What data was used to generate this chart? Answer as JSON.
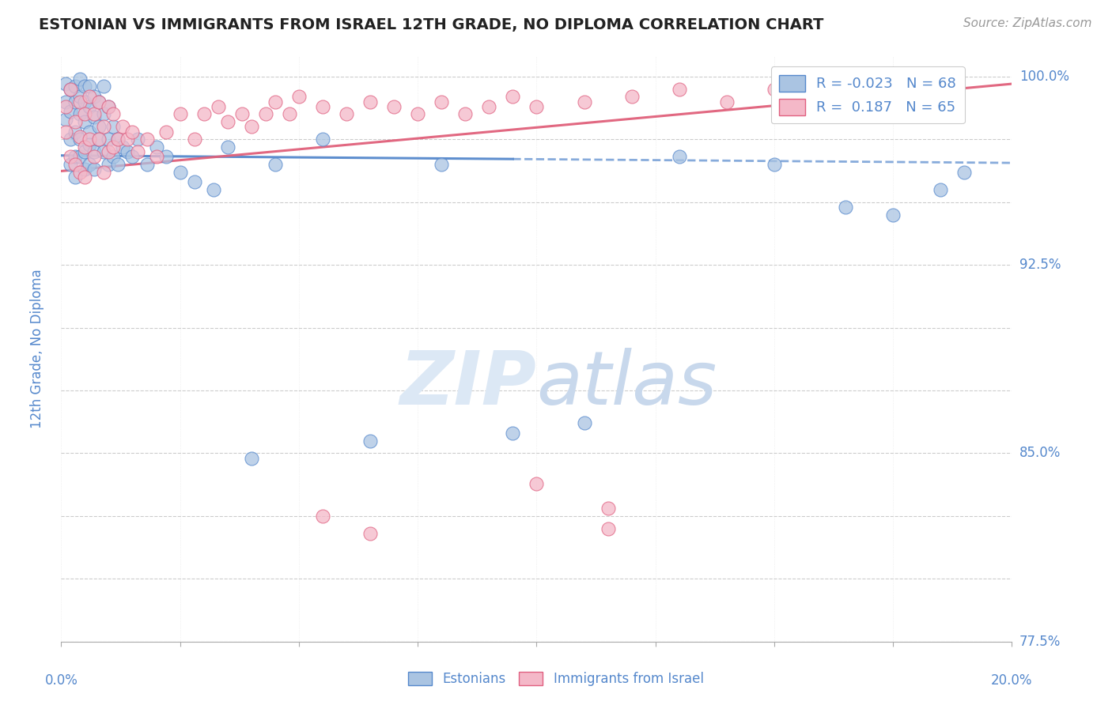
{
  "title": "ESTONIAN VS IMMIGRANTS FROM ISRAEL 12TH GRADE, NO DIPLOMA CORRELATION CHART",
  "source": "Source: ZipAtlas.com",
  "legend_label1": "Estonians",
  "legend_label2": "Immigrants from Israel",
  "ylabel_label": "12th Grade, No Diploma",
  "R1": -0.023,
  "N1": 68,
  "R2": 0.187,
  "N2": 65,
  "color_blue_fill": "#aac4e2",
  "color_blue_edge": "#5588cc",
  "color_pink_fill": "#f4b8c8",
  "color_pink_edge": "#e06080",
  "color_blue_line": "#5588cc",
  "color_pink_line": "#e0607a",
  "color_axis_label": "#5588cc",
  "color_grid": "#cccccc",
  "xlim": [
    0.0,
    0.2
  ],
  "ylim": [
    0.775,
    1.008
  ],
  "blue_scatter_x": [
    0.001,
    0.001,
    0.001,
    0.002,
    0.002,
    0.002,
    0.002,
    0.003,
    0.003,
    0.003,
    0.003,
    0.003,
    0.004,
    0.004,
    0.004,
    0.004,
    0.004,
    0.005,
    0.005,
    0.005,
    0.005,
    0.005,
    0.006,
    0.006,
    0.006,
    0.006,
    0.006,
    0.007,
    0.007,
    0.007,
    0.007,
    0.008,
    0.008,
    0.008,
    0.009,
    0.009,
    0.009,
    0.01,
    0.01,
    0.01,
    0.011,
    0.011,
    0.012,
    0.012,
    0.013,
    0.014,
    0.015,
    0.016,
    0.018,
    0.02,
    0.022,
    0.025,
    0.028,
    0.032,
    0.035,
    0.04,
    0.045,
    0.055,
    0.065,
    0.08,
    0.095,
    0.11,
    0.13,
    0.15,
    0.165,
    0.175,
    0.185,
    0.19
  ],
  "blue_scatter_y": [
    0.99,
    0.997,
    0.983,
    0.986,
    0.975,
    0.995,
    0.965,
    0.99,
    0.978,
    0.968,
    0.996,
    0.96,
    0.985,
    0.975,
    0.992,
    0.968,
    0.999,
    0.982,
    0.97,
    0.99,
    0.996,
    0.963,
    0.978,
    0.988,
    0.965,
    0.996,
    0.973,
    0.984,
    0.97,
    0.992,
    0.963,
    0.98,
    0.975,
    0.99,
    0.985,
    0.97,
    0.996,
    0.975,
    0.988,
    0.965,
    0.98,
    0.968,
    0.975,
    0.965,
    0.972,
    0.97,
    0.968,
    0.975,
    0.965,
    0.972,
    0.968,
    0.962,
    0.958,
    0.955,
    0.972,
    0.848,
    0.965,
    0.975,
    0.855,
    0.965,
    0.858,
    0.862,
    0.968,
    0.965,
    0.948,
    0.945,
    0.955,
    0.962
  ],
  "pink_scatter_x": [
    0.001,
    0.001,
    0.002,
    0.002,
    0.003,
    0.003,
    0.004,
    0.004,
    0.004,
    0.005,
    0.005,
    0.005,
    0.006,
    0.006,
    0.007,
    0.007,
    0.008,
    0.008,
    0.009,
    0.009,
    0.01,
    0.01,
    0.011,
    0.011,
    0.012,
    0.013,
    0.014,
    0.015,
    0.016,
    0.018,
    0.02,
    0.022,
    0.025,
    0.028,
    0.03,
    0.033,
    0.035,
    0.038,
    0.04,
    0.043,
    0.045,
    0.048,
    0.05,
    0.055,
    0.06,
    0.065,
    0.07,
    0.075,
    0.08,
    0.085,
    0.09,
    0.095,
    0.1,
    0.11,
    0.12,
    0.13,
    0.14,
    0.15,
    0.16,
    0.17,
    0.115,
    0.055,
    0.065,
    0.1,
    0.115
  ],
  "pink_scatter_y": [
    0.988,
    0.978,
    0.995,
    0.968,
    0.982,
    0.965,
    0.99,
    0.976,
    0.962,
    0.985,
    0.972,
    0.96,
    0.992,
    0.975,
    0.985,
    0.968,
    0.99,
    0.975,
    0.98,
    0.962,
    0.988,
    0.97,
    0.985,
    0.972,
    0.975,
    0.98,
    0.975,
    0.978,
    0.97,
    0.975,
    0.968,
    0.978,
    0.985,
    0.975,
    0.985,
    0.988,
    0.982,
    0.985,
    0.98,
    0.985,
    0.99,
    0.985,
    0.992,
    0.988,
    0.985,
    0.99,
    0.988,
    0.985,
    0.99,
    0.985,
    0.988,
    0.992,
    0.988,
    0.99,
    0.992,
    0.995,
    0.99,
    0.995,
    0.992,
    0.998,
    0.82,
    0.825,
    0.818,
    0.838,
    0.828
  ],
  "figsize": [
    14.06,
    8.92
  ],
  "dpi": 100
}
